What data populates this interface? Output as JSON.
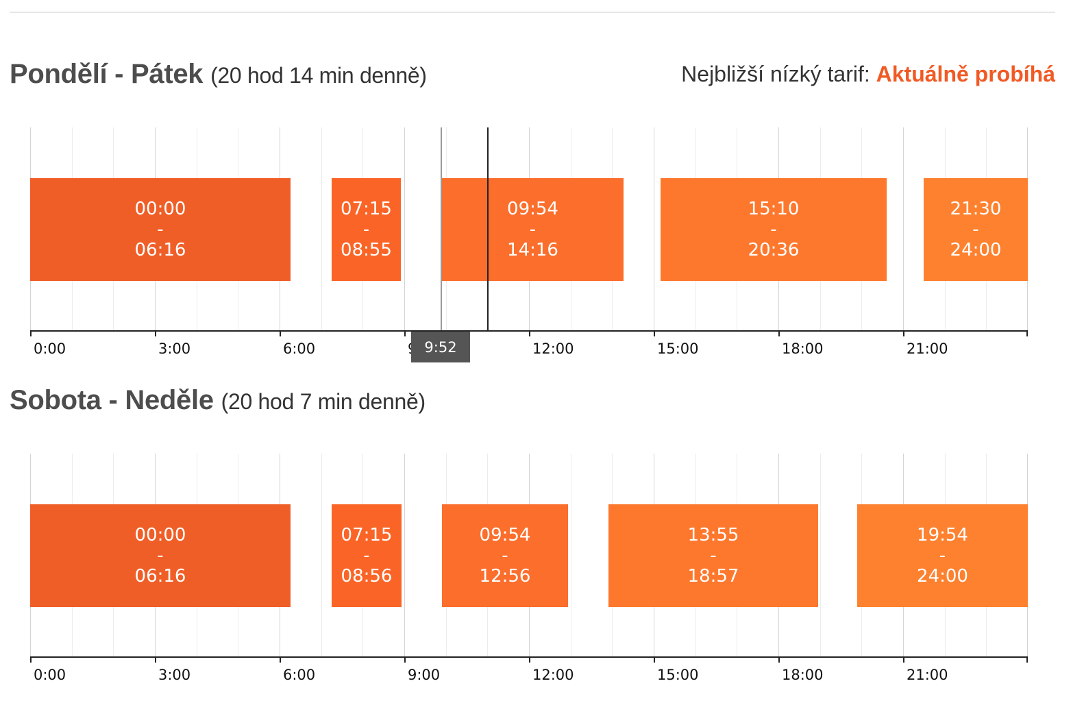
{
  "colors": {
    "block_1": "#f05e27",
    "block_2": "#fa6527",
    "block_3": "#fb6e2c",
    "block_4": "#fd782d",
    "block_5": "#fe812f",
    "accent": "#f15a24",
    "tooltip_bg": "#555555"
  },
  "axis_ticks": [
    "0:00",
    "3:00",
    "6:00",
    "9:00",
    "12:00",
    "15:00",
    "18:00",
    "21:00"
  ],
  "weekdays": {
    "title": "Pondělí - Pátek",
    "duration": "(20 hod 14 min denně)",
    "nearest_label": "Nejbližší nízký tarif:",
    "nearest_value": "Aktuálně probíhá",
    "current_time_hours": 11,
    "hover": {
      "label": "9:52",
      "hours": 9.8667
    },
    "blocks": [
      {
        "start": "00:00",
        "sep": "-",
        "end": "06:16",
        "s": 0,
        "e": 6.2667
      },
      {
        "start": "07:15",
        "sep": "-",
        "end": "08:55",
        "s": 7.25,
        "e": 8.9167
      },
      {
        "start": "09:54",
        "sep": "-",
        "end": "14:16",
        "s": 9.9,
        "e": 14.2667
      },
      {
        "start": "15:10",
        "sep": "-",
        "end": "20:36",
        "s": 15.1667,
        "e": 20.6
      },
      {
        "start": "21:30",
        "sep": "-",
        "end": "24:00",
        "s": 21.5,
        "e": 24
      }
    ]
  },
  "weekend": {
    "title": "Sobota - Neděle",
    "duration": "(20 hod 7 min denně)",
    "blocks": [
      {
        "start": "00:00",
        "sep": "-",
        "end": "06:16",
        "s": 0,
        "e": 6.2667
      },
      {
        "start": "07:15",
        "sep": "-",
        "end": "08:56",
        "s": 7.25,
        "e": 8.9333
      },
      {
        "start": "09:54",
        "sep": "-",
        "end": "12:56",
        "s": 9.9,
        "e": 12.9333
      },
      {
        "start": "13:55",
        "sep": "-",
        "end": "18:57",
        "s": 13.9167,
        "e": 18.95
      },
      {
        "start": "19:54",
        "sep": "-",
        "end": "24:00",
        "s": 19.9,
        "e": 24
      }
    ]
  }
}
